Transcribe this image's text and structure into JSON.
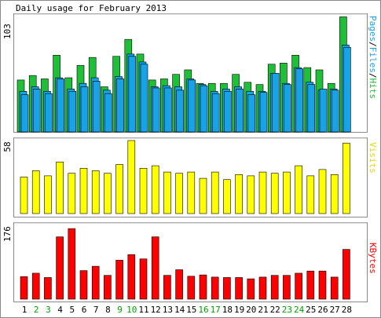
{
  "title": "Daily usage for February 2013",
  "colors": {
    "hits": "#1fbf38",
    "files": "#17a3e6",
    "pages": "#17a3e6",
    "visits": "#ffff00",
    "kbytes": "#ff0000",
    "weekend_day": "#00a000",
    "weekday": "#000000",
    "frame": "#8a8a8a",
    "panel_bg": "#ffffff"
  },
  "chart_data": [
    {
      "type": "bar",
      "panel": "hits-files-pages",
      "ylabel_parts": [
        "Pages",
        "/",
        "Files",
        "/",
        "Hits"
      ],
      "ymax_label": "103",
      "ylim": [
        0,
        103
      ],
      "categories": [
        "1",
        "2",
        "3",
        "4",
        "5",
        "6",
        "7",
        "8",
        "9",
        "10",
        "11",
        "12",
        "13",
        "14",
        "15",
        "16",
        "17",
        "18",
        "19",
        "20",
        "21",
        "22",
        "23",
        "24",
        "25",
        "26",
        "27",
        "28"
      ],
      "series": [
        {
          "name": "Hits",
          "values": [
            46,
            50,
            47,
            68,
            48,
            59,
            66,
            40,
            67,
            82,
            69,
            46,
            47,
            51,
            55,
            43,
            43,
            43,
            51,
            44,
            42,
            60,
            61,
            68,
            57,
            55,
            43,
            102
          ]
        },
        {
          "name": "Files",
          "values": [
            36,
            40,
            36,
            48,
            38,
            43,
            48,
            37,
            49,
            69,
            62,
            40,
            41,
            40,
            47,
            42,
            36,
            38,
            40,
            36,
            36,
            52,
            43,
            57,
            44,
            37,
            38,
            77
          ]
        },
        {
          "name": "Pages",
          "values": [
            33,
            38,
            34,
            47,
            36,
            40,
            45,
            34,
            47,
            67,
            60,
            39,
            39,
            37,
            46,
            41,
            34,
            36,
            38,
            33,
            35,
            52,
            42,
            56,
            42,
            38,
            37,
            75
          ]
        }
      ]
    },
    {
      "type": "bar",
      "panel": "visits",
      "ylabel": "Visits",
      "ymax_label": "58",
      "ylim": [
        0,
        58
      ],
      "categories": [
        "1",
        "2",
        "3",
        "4",
        "5",
        "6",
        "7",
        "8",
        "9",
        "10",
        "11",
        "12",
        "13",
        "14",
        "15",
        "16",
        "17",
        "18",
        "19",
        "20",
        "21",
        "22",
        "23",
        "24",
        "25",
        "26",
        "27",
        "28"
      ],
      "series": [
        {
          "name": "Visits",
          "values": [
            29,
            34,
            30,
            41,
            32,
            36,
            34,
            32,
            39,
            58,
            36,
            38,
            33,
            32,
            33,
            28,
            33,
            27,
            31,
            30,
            33,
            32,
            33,
            38,
            30,
            35,
            31,
            56
          ]
        }
      ]
    },
    {
      "type": "bar",
      "panel": "kbytes",
      "ylabel": "KBytes",
      "ymax_label": "176",
      "ylim": [
        0,
        176
      ],
      "categories": [
        "1",
        "2",
        "3",
        "4",
        "5",
        "6",
        "7",
        "8",
        "9",
        "10",
        "11",
        "12",
        "13",
        "14",
        "15",
        "16",
        "17",
        "18",
        "19",
        "20",
        "21",
        "22",
        "23",
        "24",
        "25",
        "26",
        "27",
        "28"
      ],
      "series": [
        {
          "name": "KBytes",
          "values": [
            52,
            60,
            50,
            144,
            163,
            66,
            76,
            55,
            90,
            103,
            93,
            144,
            55,
            68,
            53,
            56,
            51,
            50,
            50,
            47,
            51,
            55,
            55,
            60,
            65,
            65,
            51,
            115
          ]
        }
      ]
    }
  ],
  "weekend_days": [
    "2",
    "3",
    "9",
    "10",
    "16",
    "17",
    "23",
    "24"
  ]
}
